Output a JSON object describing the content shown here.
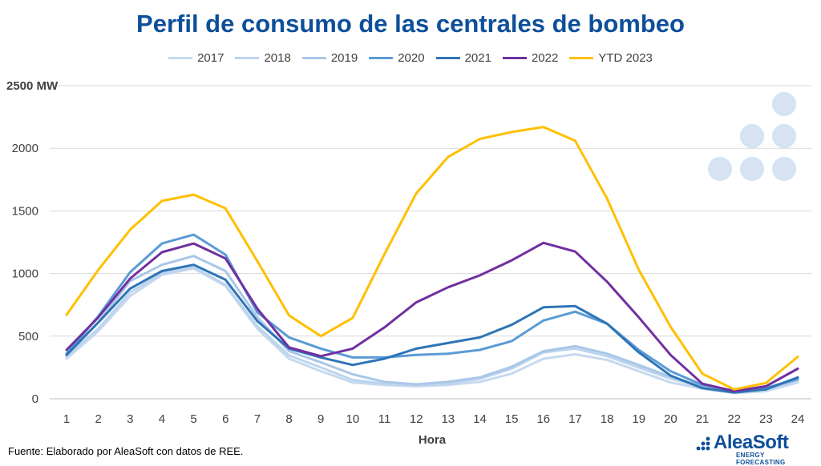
{
  "chart_data": {
    "type": "line",
    "title": "Perfil de consumo de las centrales de bombeo",
    "xlabel": "Hora",
    "ylabel": "",
    "y_top_label": "2500 MW",
    "categories": [
      "1",
      "2",
      "3",
      "4",
      "5",
      "6",
      "7",
      "8",
      "9",
      "10",
      "11",
      "12",
      "13",
      "14",
      "15",
      "16",
      "17",
      "18",
      "19",
      "20",
      "21",
      "22",
      "23",
      "24"
    ],
    "yticks": [
      "0",
      "500",
      "1000",
      "1500",
      "2000"
    ],
    "ylim": [
      0,
      2500
    ],
    "grid": true,
    "legend_position": "top",
    "series": [
      {
        "name": "2017",
        "color": "#c6d9ef",
        "values": [
          320,
          540,
          820,
          990,
          1040,
          900,
          560,
          320,
          220,
          130,
          110,
          100,
          110,
          135,
          200,
          320,
          355,
          310,
          220,
          130,
          80,
          45,
          60,
          130
        ]
      },
      {
        "name": "2018",
        "color": "#bcd4ee",
        "values": [
          340,
          560,
          850,
          1000,
          1050,
          910,
          580,
          345,
          250,
          150,
          120,
          105,
          120,
          160,
          240,
          370,
          400,
          340,
          250,
          160,
          95,
          55,
          75,
          145
        ]
      },
      {
        "name": "2019",
        "color": "#a9c7e8",
        "values": [
          360,
          610,
          940,
          1070,
          1140,
          1020,
          650,
          380,
          290,
          195,
          135,
          115,
          135,
          170,
          255,
          380,
          420,
          360,
          270,
          175,
          100,
          60,
          80,
          150
        ]
      },
      {
        "name": "2020",
        "color": "#5b9bd5",
        "values": [
          360,
          660,
          1010,
          1240,
          1310,
          1150,
          690,
          490,
          400,
          330,
          330,
          350,
          360,
          390,
          460,
          625,
          695,
          600,
          390,
          220,
          110,
          65,
          85,
          160
        ]
      },
      {
        "name": "2021",
        "color": "#2e75b6",
        "values": [
          350,
          610,
          880,
          1020,
          1070,
          950,
          620,
          400,
          330,
          270,
          320,
          400,
          445,
          490,
          590,
          730,
          740,
          600,
          370,
          185,
          85,
          50,
          75,
          170
        ]
      },
      {
        "name": "2022",
        "color": "#7030a0",
        "values": [
          390,
          650,
          960,
          1170,
          1240,
          1120,
          720,
          410,
          340,
          400,
          570,
          770,
          890,
          985,
          1105,
          1245,
          1175,
          935,
          650,
          350,
          120,
          60,
          100,
          240
        ]
      },
      {
        "name": "YTD 2023",
        "color": "#ffc000",
        "values": [
          670,
          1030,
          1350,
          1580,
          1630,
          1520,
          1100,
          665,
          500,
          645,
          1155,
          1640,
          1930,
          2075,
          2130,
          2170,
          2060,
          1600,
          1030,
          575,
          200,
          75,
          125,
          335
        ]
      }
    ]
  },
  "source_text": "Fuente: Elaborado por AleaSoft con datos de REE.",
  "logo": {
    "name": "AleaSoft",
    "subtitle": "ENERGY FORECASTING"
  }
}
